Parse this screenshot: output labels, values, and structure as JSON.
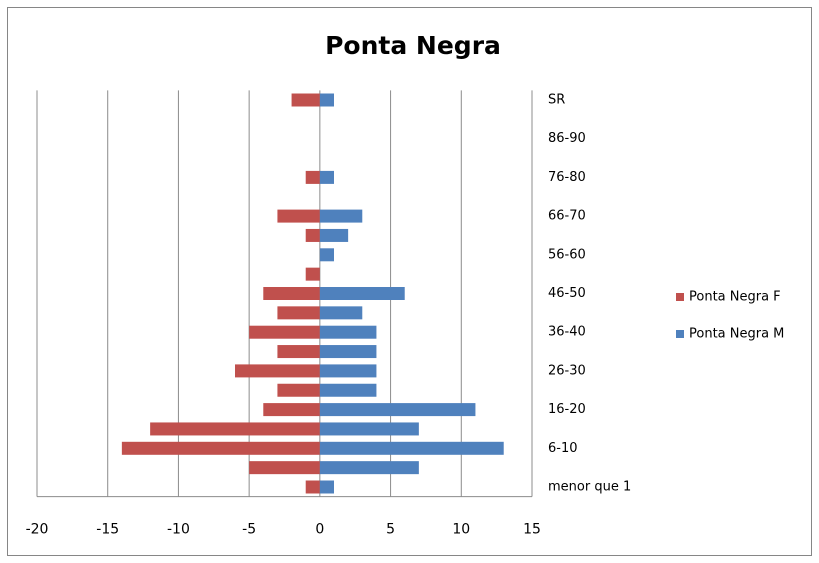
{
  "chart_data": {
    "type": "hbar",
    "title": "Ponta Negra",
    "categories": [
      "menor que 1",
      null,
      "6-10",
      null,
      "16-20",
      null,
      "26-30",
      null,
      "36-40",
      null,
      "46-50",
      null,
      "56-60",
      null,
      "66-70",
      null,
      "76-80",
      null,
      "86-90",
      null,
      "SR"
    ],
    "series": [
      {
        "name": "Ponta Negra F",
        "color": "#c0504d",
        "values": [
          -1,
          -5,
          -14,
          -12,
          -4,
          -3,
          -6,
          -3,
          -5,
          -3,
          -4,
          -1,
          0,
          -1,
          -3,
          0,
          -1,
          0,
          0,
          0,
          -2
        ]
      },
      {
        "name": "Ponta Negra M",
        "color": "#4f81bd",
        "values": [
          1,
          7,
          13,
          7,
          11,
          4,
          4,
          4,
          4,
          3,
          6,
          0,
          1,
          2,
          3,
          0,
          1,
          0,
          0,
          0,
          1
        ]
      }
    ],
    "xlim": [
      -20,
      15
    ],
    "xticks": [
      -20,
      -15,
      -10,
      -5,
      0,
      5,
      10,
      15
    ],
    "grid": true,
    "legend": "right"
  }
}
